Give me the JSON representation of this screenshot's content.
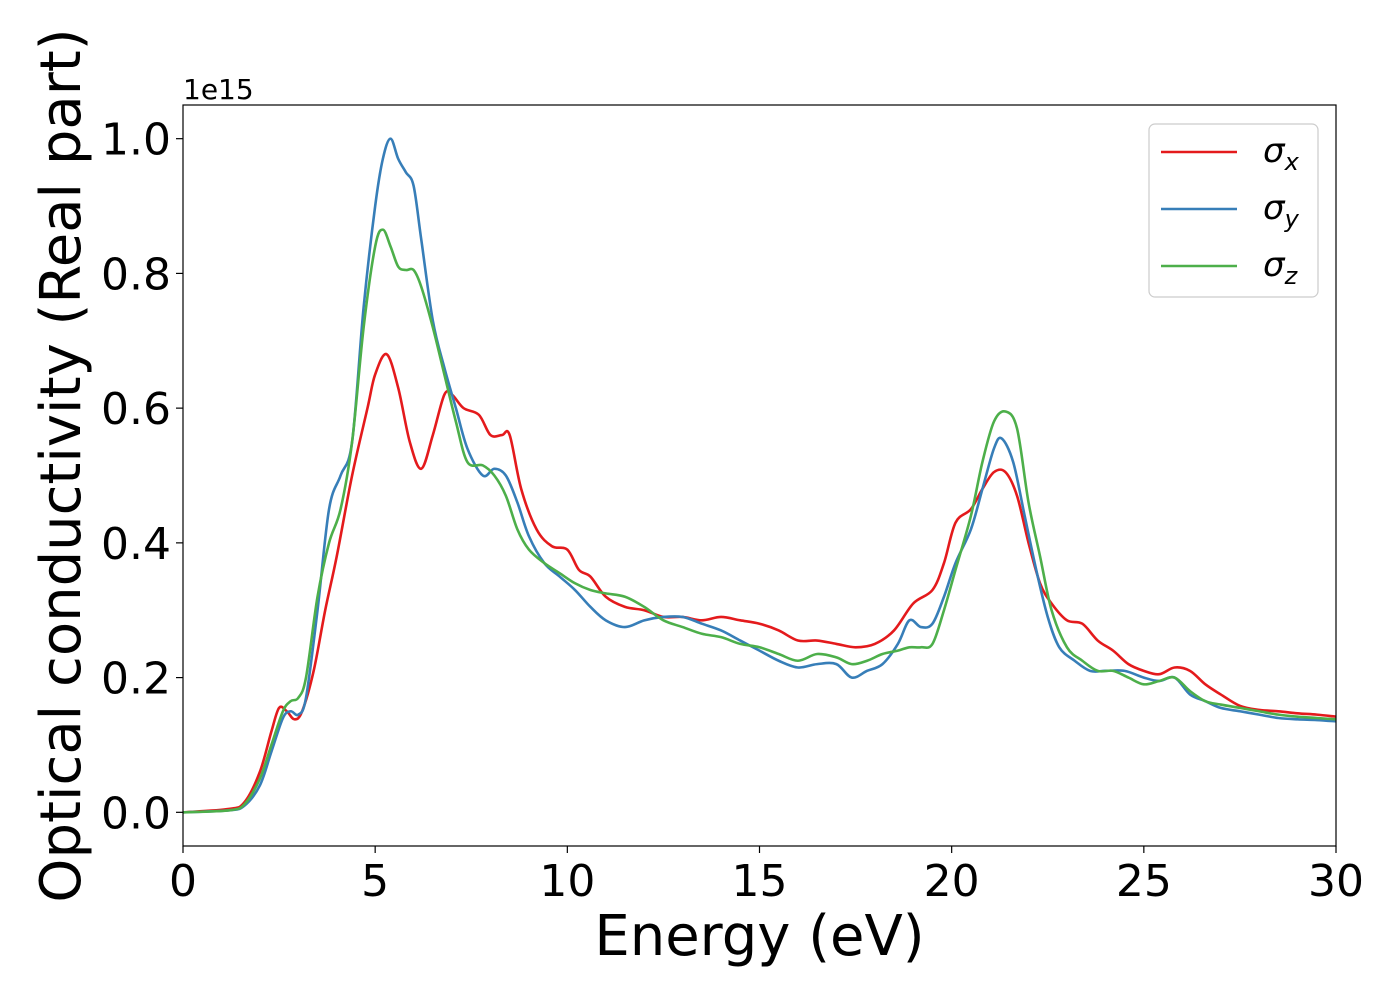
{
  "chart_data": {
    "type": "line",
    "title": "",
    "xlabel": "Energy (eV)",
    "ylabel": "Optical conductivity (Real part)",
    "y_offset_label": "1e15",
    "xlim": [
      0,
      30
    ],
    "ylim": [
      -0.05,
      1.05
    ],
    "xticks": [
      0,
      5,
      10,
      15,
      20,
      25,
      30
    ],
    "xtick_labels": [
      "0",
      "5",
      "10",
      "15",
      "20",
      "25",
      "30"
    ],
    "yticks": [
      0.0,
      0.2,
      0.4,
      0.6,
      0.8,
      1.0
    ],
    "ytick_labels": [
      "0.0",
      "0.2",
      "0.4",
      "0.6",
      "0.8",
      "1.0"
    ],
    "grid": false,
    "legend_position": "top-right",
    "series": [
      {
        "name": "σx",
        "legend_main": "σ",
        "legend_sub": "x",
        "color": "#e41a1c",
        "x": [
          0,
          1.2,
          1.6,
          2.0,
          2.3,
          2.5,
          2.7,
          2.9,
          3.1,
          3.4,
          3.7,
          4.0,
          4.4,
          4.8,
          5.0,
          5.3,
          5.6,
          5.9,
          6.2,
          6.5,
          6.8,
          7.0,
          7.3,
          7.7,
          8.0,
          8.3,
          8.5,
          8.8,
          9.2,
          9.6,
          10.0,
          10.3,
          10.6,
          11.0,
          11.5,
          12.0,
          12.5,
          13.0,
          13.5,
          14.0,
          14.5,
          15.0,
          15.5,
          16.0,
          16.5,
          17.0,
          17.5,
          18.0,
          18.5,
          19.0,
          19.5,
          19.8,
          20.1,
          20.5,
          20.8,
          21.1,
          21.4,
          21.7,
          22.0,
          22.3,
          22.6,
          23.0,
          23.4,
          23.8,
          24.2,
          24.6,
          25.0,
          25.4,
          25.8,
          26.2,
          26.6,
          27.0,
          27.5,
          28.0,
          28.5,
          29.0,
          29.5,
          30.0
        ],
        "y": [
          0.0,
          0.005,
          0.015,
          0.06,
          0.12,
          0.155,
          0.15,
          0.138,
          0.15,
          0.21,
          0.3,
          0.38,
          0.5,
          0.6,
          0.65,
          0.68,
          0.63,
          0.55,
          0.51,
          0.56,
          0.62,
          0.62,
          0.6,
          0.59,
          0.56,
          0.56,
          0.56,
          0.48,
          0.42,
          0.395,
          0.39,
          0.36,
          0.35,
          0.32,
          0.305,
          0.3,
          0.29,
          0.29,
          0.285,
          0.29,
          0.285,
          0.28,
          0.27,
          0.255,
          0.255,
          0.25,
          0.245,
          0.25,
          0.27,
          0.31,
          0.33,
          0.37,
          0.43,
          0.45,
          0.48,
          0.505,
          0.505,
          0.47,
          0.4,
          0.34,
          0.31,
          0.285,
          0.28,
          0.255,
          0.24,
          0.22,
          0.21,
          0.205,
          0.215,
          0.21,
          0.19,
          0.175,
          0.158,
          0.152,
          0.15,
          0.147,
          0.145,
          0.142
        ]
      },
      {
        "name": "σy",
        "legend_main": "σ",
        "legend_sub": "y",
        "color": "#377eb8",
        "x": [
          0,
          1.2,
          1.6,
          2.0,
          2.3,
          2.6,
          2.8,
          3.0,
          3.2,
          3.5,
          3.8,
          4.1,
          4.4,
          4.7,
          5.0,
          5.2,
          5.4,
          5.6,
          5.8,
          6.0,
          6.2,
          6.5,
          6.8,
          7.1,
          7.4,
          7.8,
          8.1,
          8.4,
          8.7,
          9.0,
          9.4,
          9.8,
          10.2,
          10.6,
          11.0,
          11.5,
          12.0,
          12.5,
          13.0,
          13.5,
          14.0,
          14.5,
          15.0,
          15.5,
          16.0,
          16.5,
          17.0,
          17.4,
          17.8,
          18.2,
          18.6,
          18.9,
          19.2,
          19.5,
          19.8,
          20.1,
          20.5,
          20.8,
          21.1,
          21.3,
          21.6,
          21.9,
          22.2,
          22.5,
          22.8,
          23.2,
          23.6,
          24.0,
          24.5,
          25.0,
          25.4,
          25.8,
          26.2,
          26.6,
          27.0,
          27.5,
          28.0,
          28.5,
          29.0,
          29.5,
          30.0
        ],
        "y": [
          0.0,
          0.003,
          0.01,
          0.04,
          0.09,
          0.14,
          0.15,
          0.145,
          0.17,
          0.3,
          0.45,
          0.5,
          0.55,
          0.75,
          0.9,
          0.97,
          1.0,
          0.97,
          0.95,
          0.93,
          0.85,
          0.73,
          0.66,
          0.6,
          0.54,
          0.5,
          0.51,
          0.5,
          0.46,
          0.41,
          0.37,
          0.35,
          0.33,
          0.305,
          0.285,
          0.275,
          0.285,
          0.29,
          0.29,
          0.28,
          0.27,
          0.255,
          0.24,
          0.225,
          0.215,
          0.22,
          0.22,
          0.2,
          0.21,
          0.22,
          0.25,
          0.285,
          0.275,
          0.28,
          0.32,
          0.37,
          0.42,
          0.48,
          0.54,
          0.555,
          0.52,
          0.44,
          0.36,
          0.29,
          0.245,
          0.225,
          0.21,
          0.21,
          0.21,
          0.2,
          0.195,
          0.2,
          0.175,
          0.165,
          0.155,
          0.15,
          0.145,
          0.14,
          0.138,
          0.137,
          0.135
        ]
      },
      {
        "name": "σz",
        "legend_main": "σ",
        "legend_sub": "z",
        "color": "#4daf4a",
        "x": [
          0,
          1.2,
          1.6,
          2.0,
          2.3,
          2.6,
          2.8,
          3.0,
          3.2,
          3.5,
          3.8,
          4.1,
          4.4,
          4.7,
          5.0,
          5.2,
          5.4,
          5.6,
          5.8,
          6.0,
          6.2,
          6.5,
          6.8,
          7.1,
          7.4,
          7.8,
          8.1,
          8.4,
          8.7,
          9.0,
          9.4,
          9.8,
          10.2,
          10.6,
          11.0,
          11.5,
          12.0,
          12.5,
          13.0,
          13.5,
          14.0,
          14.5,
          15.0,
          15.5,
          16.0,
          16.5,
          17.0,
          17.4,
          17.8,
          18.2,
          18.6,
          18.9,
          19.2,
          19.5,
          19.8,
          20.1,
          20.5,
          20.8,
          21.1,
          21.4,
          21.7,
          22.0,
          22.3,
          22.6,
          23.0,
          23.4,
          23.8,
          24.2,
          24.6,
          25.0,
          25.4,
          25.8,
          26.2,
          26.6,
          27.0,
          27.5,
          28.0,
          28.5,
          29.0,
          29.5,
          30.0
        ],
        "y": [
          0.0,
          0.003,
          0.012,
          0.05,
          0.1,
          0.15,
          0.165,
          0.17,
          0.2,
          0.32,
          0.4,
          0.45,
          0.55,
          0.72,
          0.84,
          0.865,
          0.84,
          0.81,
          0.805,
          0.805,
          0.78,
          0.72,
          0.65,
          0.58,
          0.52,
          0.515,
          0.5,
          0.47,
          0.42,
          0.39,
          0.37,
          0.355,
          0.34,
          0.33,
          0.325,
          0.32,
          0.305,
          0.285,
          0.275,
          0.265,
          0.26,
          0.25,
          0.245,
          0.235,
          0.225,
          0.235,
          0.23,
          0.22,
          0.225,
          0.235,
          0.24,
          0.245,
          0.245,
          0.25,
          0.3,
          0.36,
          0.44,
          0.52,
          0.58,
          0.595,
          0.57,
          0.46,
          0.38,
          0.3,
          0.245,
          0.225,
          0.21,
          0.21,
          0.2,
          0.19,
          0.195,
          0.2,
          0.18,
          0.165,
          0.16,
          0.155,
          0.15,
          0.145,
          0.142,
          0.14,
          0.138
        ]
      }
    ]
  }
}
